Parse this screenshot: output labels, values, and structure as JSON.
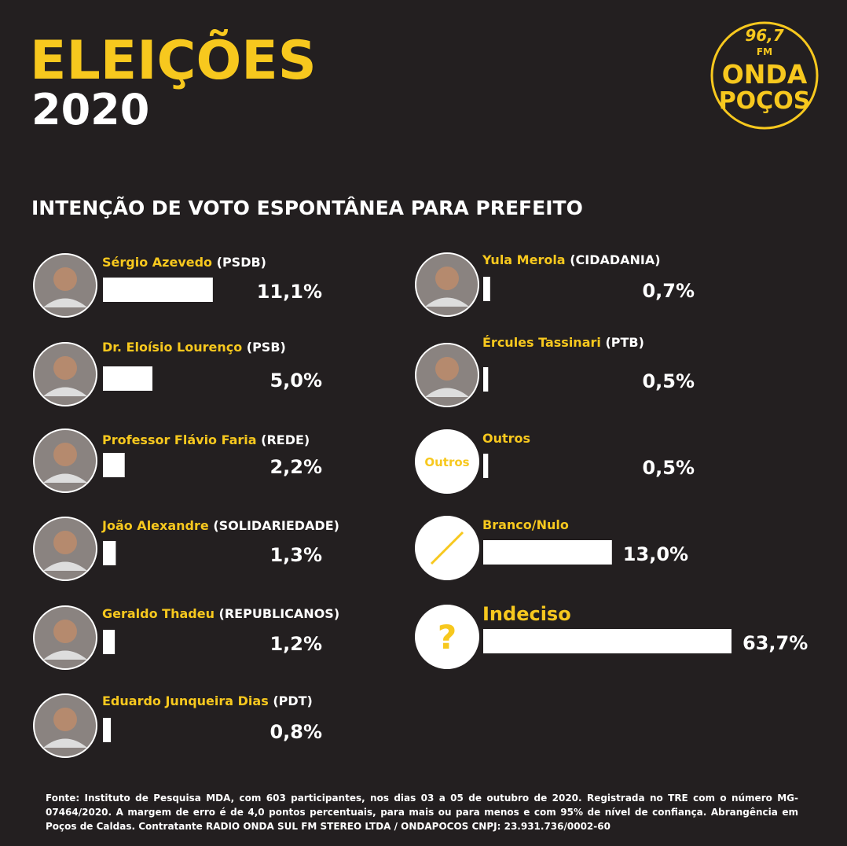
{
  "header": {
    "title": "ELEIÇÕES",
    "year": "2020"
  },
  "logo": {
    "frequency": "96,7",
    "band": "FM",
    "line1": "ONDA",
    "line2": "POÇOS"
  },
  "chart_data": {
    "type": "bar",
    "title": "INTENÇÃO DE VOTO ESPONTÂNEA PARA PREFEITO",
    "categories": [
      "Sérgio Azevedo",
      "Dr. Eloísio Lourenço",
      "Professor Flávio Faria",
      "João Alexandre",
      "Geraldo Thadeu",
      "Eduardo Junqueira Dias",
      "Yula Merola",
      "Ércules Tassinari",
      "Outros",
      "Branco/Nulo",
      "Indeciso"
    ],
    "parties": [
      "(PSDB)",
      "(PSB)",
      "(REDE)",
      "(SOLIDARIEDADE)",
      "(REPUBLICANOS)",
      "(PDT)",
      "(CIDADANIA)",
      "(PTB)",
      null,
      null,
      null
    ],
    "values": [
      11.1,
      5.0,
      2.2,
      1.3,
      1.2,
      0.8,
      0.7,
      0.5,
      0.5,
      13.0,
      63.7
    ],
    "value_labels": [
      "11,1%",
      "5,0%",
      "2,2%",
      "1,3%",
      "1,2%",
      "0,8%",
      "0,7%",
      "0,5%",
      "0,5%",
      "13,0%",
      "63,7%"
    ],
    "color": "#ffffff",
    "name_color": "#f7c81e",
    "icon_labels": {
      "outros": "Outros",
      "indeciso": "?"
    }
  },
  "footer": {
    "source": "Fonte: Instituto de Pesquisa MDA, com 603 participantes, nos dias 03 a 05 de outubro de 2020. Registrada no TRE com o número MG-07464/2020. A margem de erro é de 4,0 pontos percentuais, para mais ou para menos e com 95% de nível de confiança. Abrangência em Poços de Caldas. Contratante RADIO ONDA SUL FM STEREO LTDA / ONDAPOCOS CNPJ: 23.931.736/0002-60"
  }
}
